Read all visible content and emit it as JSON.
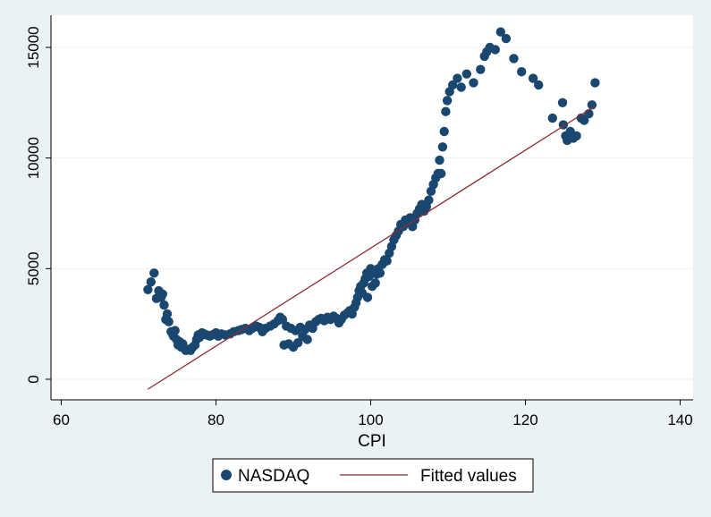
{
  "chart_data": {
    "type": "scatter",
    "title": "",
    "xlabel": "CPI",
    "ylabel": "",
    "xlim": [
      60,
      140
    ],
    "ylim": [
      -800,
      16000
    ],
    "x_ticks": [
      60,
      80,
      100,
      120,
      140
    ],
    "y_ticks": [
      0,
      5000,
      10000,
      15000
    ],
    "x_tick_labels": [
      "60",
      "80",
      "100",
      "120",
      "140"
    ],
    "y_tick_labels": [
      "0",
      "5000",
      "10000",
      "15000"
    ],
    "grid": true,
    "legend_position": "bottom",
    "series": [
      {
        "name": "NASDAQ",
        "kind": "scatter",
        "color": "#1a476f",
        "points": [
          [
            71.2,
            4050
          ],
          [
            71.6,
            4400
          ],
          [
            72.0,
            4800
          ],
          [
            72.3,
            3650
          ],
          [
            72.6,
            4000
          ],
          [
            72.9,
            3700
          ],
          [
            73.1,
            3850
          ],
          [
            73.3,
            3350
          ],
          [
            73.5,
            2700
          ],
          [
            73.7,
            2950
          ],
          [
            73.9,
            2600
          ],
          [
            74.2,
            2150
          ],
          [
            74.5,
            1950
          ],
          [
            74.7,
            2200
          ],
          [
            74.9,
            1800
          ],
          [
            75.1,
            1550
          ],
          [
            75.3,
            1700
          ],
          [
            75.5,
            1450
          ],
          [
            75.7,
            1600
          ],
          [
            75.9,
            1400
          ],
          [
            76.1,
            1300
          ],
          [
            76.4,
            1350
          ],
          [
            76.7,
            1300
          ],
          [
            77.0,
            1450
          ],
          [
            77.3,
            1550
          ],
          [
            77.5,
            1800
          ],
          [
            77.7,
            2000
          ],
          [
            77.9,
            1900
          ],
          [
            78.2,
            2100
          ],
          [
            78.5,
            2050
          ],
          [
            78.8,
            2000
          ],
          [
            79.2,
            1950
          ],
          [
            79.5,
            2000
          ],
          [
            80.0,
            2100
          ],
          [
            80.3,
            1950
          ],
          [
            80.7,
            2050
          ],
          [
            81.2,
            2000
          ],
          [
            81.8,
            2050
          ],
          [
            82.3,
            2150
          ],
          [
            82.9,
            2200
          ],
          [
            83.3,
            2250
          ],
          [
            83.8,
            2300
          ],
          [
            84.3,
            2200
          ],
          [
            84.7,
            2300
          ],
          [
            85.2,
            2400
          ],
          [
            85.6,
            2350
          ],
          [
            86.0,
            2150
          ],
          [
            86.4,
            2300
          ],
          [
            87.0,
            2400
          ],
          [
            87.5,
            2500
          ],
          [
            88.0,
            2650
          ],
          [
            88.3,
            2800
          ],
          [
            88.6,
            2700
          ],
          [
            88.8,
            1550
          ],
          [
            89.1,
            2400
          ],
          [
            89.4,
            1600
          ],
          [
            89.7,
            2300
          ],
          [
            90.0,
            1450
          ],
          [
            90.3,
            2200
          ],
          [
            90.6,
            1650
          ],
          [
            90.9,
            2350
          ],
          [
            91.2,
            1950
          ],
          [
            91.5,
            2250
          ],
          [
            91.8,
            1800
          ],
          [
            92.1,
            2450
          ],
          [
            92.5,
            2300
          ],
          [
            92.9,
            2600
          ],
          [
            93.3,
            2700
          ],
          [
            93.6,
            2750
          ],
          [
            94.0,
            2650
          ],
          [
            94.4,
            2800
          ],
          [
            94.8,
            2700
          ],
          [
            95.2,
            2850
          ],
          [
            95.6,
            2750
          ],
          [
            95.9,
            2550
          ],
          [
            96.2,
            2700
          ],
          [
            96.6,
            2900
          ],
          [
            97.0,
            3000
          ],
          [
            97.3,
            3100
          ],
          [
            97.6,
            2950
          ],
          [
            97.9,
            3250
          ],
          [
            98.1,
            3450
          ],
          [
            98.3,
            3700
          ],
          [
            98.5,
            4000
          ],
          [
            98.7,
            4200
          ],
          [
            98.9,
            3900
          ],
          [
            99.1,
            4350
          ],
          [
            99.3,
            4550
          ],
          [
            99.5,
            4800
          ],
          [
            99.6,
            3700
          ],
          [
            99.8,
            4650
          ],
          [
            100.0,
            5000
          ],
          [
            100.2,
            4200
          ],
          [
            100.4,
            4900
          ],
          [
            100.6,
            4350
          ],
          [
            100.8,
            4750
          ],
          [
            101.0,
            5000
          ],
          [
            101.2,
            4800
          ],
          [
            101.5,
            5200
          ],
          [
            101.8,
            5400
          ],
          [
            102.1,
            5350
          ],
          [
            102.4,
            5700
          ],
          [
            102.7,
            6000
          ],
          [
            103.0,
            6300
          ],
          [
            103.3,
            6500
          ],
          [
            103.6,
            6700
          ],
          [
            103.9,
            7000
          ],
          [
            104.2,
            6900
          ],
          [
            104.5,
            7200
          ],
          [
            104.8,
            7100
          ],
          [
            105.1,
            7300
          ],
          [
            105.4,
            6900
          ],
          [
            105.7,
            7200
          ],
          [
            106.0,
            7500
          ],
          [
            106.3,
            7700
          ],
          [
            106.6,
            7900
          ],
          [
            106.9,
            7600
          ],
          [
            107.2,
            7800
          ],
          [
            107.5,
            8100
          ],
          [
            107.8,
            8500
          ],
          [
            108.1,
            8800
          ],
          [
            108.4,
            9100
          ],
          [
            108.7,
            9300
          ],
          [
            108.9,
            9900
          ],
          [
            109.1,
            9300
          ],
          [
            109.3,
            10500
          ],
          [
            109.5,
            11200
          ],
          [
            109.7,
            12100
          ],
          [
            109.9,
            12600
          ],
          [
            110.2,
            13000
          ],
          [
            110.6,
            13300
          ],
          [
            111.2,
            13600
          ],
          [
            111.7,
            13200
          ],
          [
            112.4,
            13800
          ],
          [
            113.3,
            13400
          ],
          [
            114.2,
            14000
          ],
          [
            114.7,
            14600
          ],
          [
            115.0,
            14800
          ],
          [
            115.4,
            15000
          ],
          [
            116.1,
            14900
          ],
          [
            116.8,
            15700
          ],
          [
            117.5,
            15400
          ],
          [
            118.5,
            14500
          ],
          [
            119.5,
            13900
          ],
          [
            121.0,
            13600
          ],
          [
            121.7,
            13300
          ],
          [
            123.5,
            11800
          ],
          [
            124.8,
            12500
          ],
          [
            124.9,
            11500
          ],
          [
            125.2,
            11000
          ],
          [
            125.4,
            10800
          ],
          [
            125.8,
            11200
          ],
          [
            126.2,
            10900
          ],
          [
            126.6,
            11000
          ],
          [
            127.2,
            11800
          ],
          [
            127.6,
            11700
          ],
          [
            128.2,
            12000
          ],
          [
            128.6,
            12400
          ],
          [
            129.0,
            13400
          ]
        ]
      },
      {
        "name": "Fitted values",
        "kind": "line",
        "color": "#8c2c30",
        "x": [
          71.2,
          129.0
        ],
        "y": [
          -450,
          12350
        ]
      }
    ]
  }
}
